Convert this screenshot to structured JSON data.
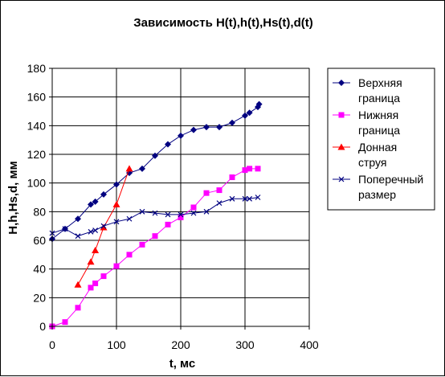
{
  "chart_data": {
    "type": "line",
    "title": "Зависимость H(t),h(t),Hs(t),d(t)",
    "xlabel": "t, мс",
    "ylabel": "H,h,Hs,d, мм",
    "xlim": [
      0,
      400
    ],
    "ylim": [
      0,
      180
    ],
    "x_ticks": [
      "0",
      "100",
      "200",
      "300",
      "400"
    ],
    "y_ticks": [
      "0",
      "20",
      "40",
      "60",
      "80",
      "100",
      "120",
      "140",
      "160",
      "180"
    ],
    "grid": "major gridlines",
    "legend_position": "right",
    "series": [
      {
        "name": "Верхняя граница",
        "legend_lines": [
          " Верхняя",
          "граница"
        ],
        "color": "#000080",
        "marker": "diamond",
        "x": [
          0,
          20,
          40,
          60,
          67,
          80,
          100,
          120,
          140,
          160,
          180,
          200,
          220,
          240,
          260,
          280,
          300,
          307,
          320,
          322
        ],
        "y": [
          61,
          68,
          75,
          85,
          87,
          92,
          99,
          107,
          110,
          119,
          127,
          133,
          137,
          139,
          139,
          142,
          147,
          149,
          153,
          155
        ]
      },
      {
        "name": "Нижняя граница",
        "legend_lines": [
          "Нижняя",
          "граница"
        ],
        "color": "#FF00FF",
        "marker": "square",
        "x": [
          0,
          20,
          40,
          60,
          67,
          80,
          100,
          120,
          140,
          160,
          180,
          200,
          220,
          240,
          260,
          280,
          300,
          307,
          320
        ],
        "y": [
          0,
          3,
          13,
          27,
          30,
          35,
          42,
          50,
          57,
          63,
          71,
          76,
          83,
          93,
          95,
          104,
          109,
          110,
          110
        ]
      },
      {
        "name": "Донная струя",
        "legend_lines": [
          "Донная",
          "струя"
        ],
        "color": "#FF0000",
        "marker": "triangle",
        "x": [
          40,
          60,
          67,
          80,
          100,
          120
        ],
        "y": [
          29,
          45,
          53,
          69,
          85,
          110
        ]
      },
      {
        "name": "Поперечный размер",
        "legend_lines": [
          "Поперечный",
          "размер"
        ],
        "color": "#000080",
        "marker": "x",
        "x": [
          0,
          20,
          40,
          60,
          67,
          80,
          100,
          120,
          140,
          160,
          180,
          200,
          220,
          240,
          260,
          280,
          300,
          307,
          320
        ],
        "y": [
          65,
          68,
          63,
          66,
          67,
          70,
          73,
          75,
          80,
          79,
          78,
          78,
          79,
          80,
          86,
          89,
          89,
          89,
          90
        ]
      }
    ]
  }
}
